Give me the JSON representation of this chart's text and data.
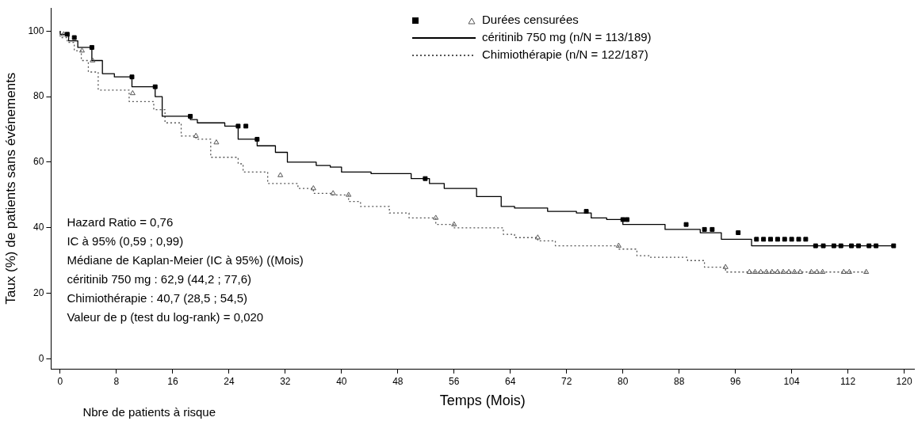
{
  "chart_data": {
    "type": "step",
    "xlabel": "Temps (Mois)",
    "ylabel": "Taux (%) de patients sans événements",
    "legend_title": "Durées censurées",
    "xlim": [
      -1.3,
      121.4
    ],
    "xticks": [
      0,
      8,
      16,
      24,
      32,
      40,
      48,
      56,
      64,
      72,
      80,
      88,
      96,
      104,
      112,
      120
    ],
    "ylim": [
      -3,
      107
    ],
    "yticks": [
      0,
      20,
      40,
      60,
      80,
      100
    ],
    "grid": false,
    "legend": "top right",
    "series": [
      {
        "name": "céritinib 750 mg (n/N = 113/189)",
        "color": "#000000",
        "line_style": "solid",
        "x": [
          0,
          1.2,
          2.5,
          4.5,
          6,
          7.7,
          10.2,
          13.5,
          14.5,
          18.5,
          19.5,
          23.4,
          25.3,
          28,
          30.6,
          32.3,
          36.4,
          38.4,
          40,
          44.2,
          49.9,
          52.5,
          54.6,
          59.2,
          62.7,
          64.6,
          69.3,
          73.4,
          75.5,
          77.7,
          80,
          86,
          91,
          94,
          98.3,
          106.6,
          118.5
        ],
        "values": [
          100,
          99,
          97,
          95,
          91,
          87,
          86,
          83,
          80,
          74,
          73,
          72,
          71,
          67,
          65,
          63,
          60,
          59,
          58.5,
          57,
          56.5,
          55,
          53.5,
          52,
          49.5,
          46.5,
          46,
          45,
          44.5,
          43,
          42.5,
          41,
          39.5,
          38.5,
          36.5,
          34.5,
          34.5
        ]
      },
      {
        "name": "Chimiothérapie (n/N = 122/187)",
        "color": "#555555",
        "line_style": "dotted",
        "x": [
          0,
          1,
          2,
          3,
          4,
          5.4,
          9.8,
          13.3,
          14.9,
          17.2,
          19.3,
          21.4,
          25.3,
          26,
          29.5,
          33.8,
          36,
          38.7,
          41,
          42.7,
          46.8,
          49.6,
          53.4,
          56,
          63,
          64.6,
          67.9,
          70.4,
          73.9,
          79.4,
          82,
          83.8,
          89.2,
          91.6,
          94.6,
          96.5,
          114.6
        ],
        "values": [
          100,
          98,
          96.5,
          94,
          91,
          87.5,
          82,
          78.5,
          76,
          72,
          68,
          67,
          61.5,
          59.5,
          57,
          53.5,
          52,
          50.5,
          50,
          48,
          46.5,
          44.5,
          43,
          41,
          40,
          38,
          37,
          36,
          34.5,
          34.5,
          33.5,
          31.5,
          31,
          30,
          28,
          26.5,
          26.5
        ]
      },
      {
        "type": "scatter",
        "marker": "square",
        "color": "#000000",
        "x": [
          1,
          2,
          4.5,
          10.2,
          13.5,
          18.5,
          25.3,
          26.4,
          28,
          51.9,
          74.8,
          80,
          80.6,
          89,
          91.6,
          92.7,
          96.4,
          99,
          100,
          101,
          102,
          103,
          104,
          105,
          106,
          107.4,
          108.5,
          110,
          111,
          112.5,
          113.5,
          115,
          116,
          118.5
        ],
        "values": [
          99,
          98,
          95,
          86,
          83,
          74,
          71,
          71,
          67,
          55,
          45,
          42.5,
          42.5,
          41,
          39.5,
          39.5,
          38.5,
          36.5,
          36.5,
          36.5,
          36.5,
          36.5,
          36.5,
          36.5,
          36.5,
          34.5,
          34.5,
          34.5,
          34.5,
          34.5,
          34.5,
          34.5,
          34.5,
          34.5
        ]
      },
      {
        "type": "scatter",
        "marker": "triangle",
        "color": "#555555",
        "x": [
          0.5,
          3.1,
          4.6,
          10.3,
          19.3,
          22.2,
          31.3,
          36,
          38.8,
          41,
          53.4,
          56,
          67.9,
          79.4,
          94.6,
          98,
          98.8,
          99.6,
          100.4,
          101.2,
          102,
          102.8,
          103.6,
          104.4,
          105.2,
          106.8,
          107.6,
          108.4,
          111.4,
          112.2,
          114.6
        ],
        "values": [
          99,
          94,
          91,
          81,
          68,
          66,
          56,
          52,
          50.5,
          50,
          43,
          41,
          37,
          34.5,
          28,
          26.5,
          26.5,
          26.5,
          26.5,
          26.5,
          26.5,
          26.5,
          26.5,
          26.5,
          26.5,
          26.5,
          26.5,
          26.5,
          26.5,
          26.5,
          26.5
        ]
      }
    ],
    "annotations": [
      "Hazard Ratio = 0,76",
      "IC à 95% (0,59 ; 0,99)",
      "Médiane de Kaplan-Meier (IC à 95%) ((Mois)",
      "céritinib 750 mg : 62,9 (44,2 ; 77,6)",
      "Chimiothérapie : 40,7 (28,5 ; 54,5)",
      "Valeur de p (test du log-rank) = 0,020",
      "Nbre de patients à risque"
    ]
  }
}
